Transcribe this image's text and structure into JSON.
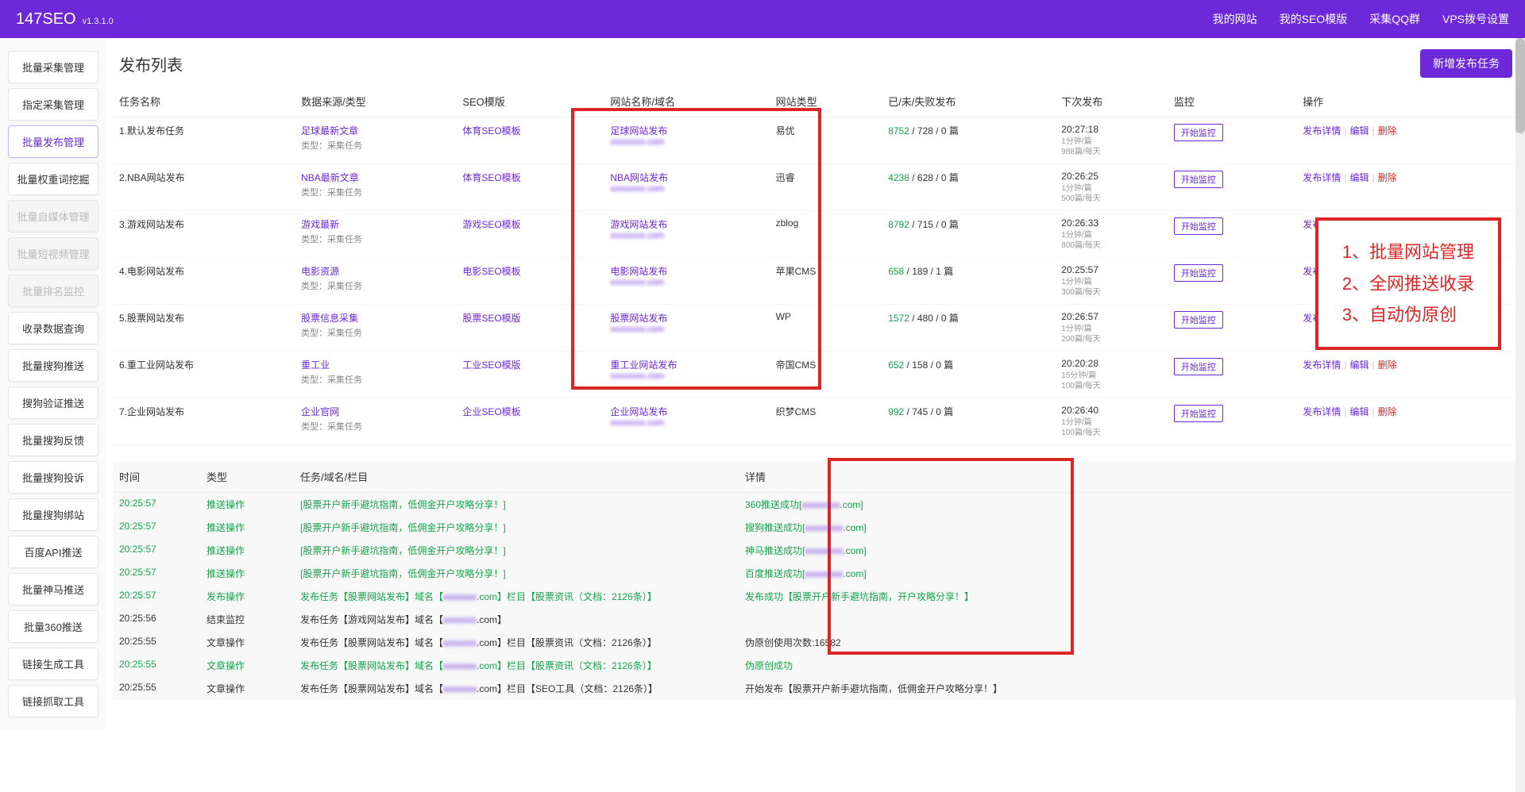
{
  "brand": {
    "title": "147SEO",
    "version": "v1.3.1.0"
  },
  "topnav": [
    "我的网站",
    "我的SEO模版",
    "采集QQ群",
    "VPS拨号设置"
  ],
  "sidebar": [
    {
      "label": "批量采集管理",
      "state": ""
    },
    {
      "label": "指定采集管理",
      "state": ""
    },
    {
      "label": "批量发布管理",
      "state": "active"
    },
    {
      "label": "批量权重词挖掘",
      "state": ""
    },
    {
      "label": "批量自媒体管理",
      "state": "disabled"
    },
    {
      "label": "批量短视频管理",
      "state": "disabled"
    },
    {
      "label": "批量排名监控",
      "state": "disabled"
    },
    {
      "label": "收录数据查询",
      "state": ""
    },
    {
      "label": "批量搜狗推送",
      "state": ""
    },
    {
      "label": "搜狗验证推送",
      "state": ""
    },
    {
      "label": "批量搜狗反馈",
      "state": ""
    },
    {
      "label": "批量搜狗投诉",
      "state": ""
    },
    {
      "label": "批量搜狗绑站",
      "state": ""
    },
    {
      "label": "百度API推送",
      "state": ""
    },
    {
      "label": "批量神马推送",
      "state": ""
    },
    {
      "label": "批量360推送",
      "state": ""
    },
    {
      "label": "链接生成工具",
      "state": ""
    },
    {
      "label": "链接抓取工具",
      "state": ""
    }
  ],
  "page": {
    "title": "发布列表",
    "new_btn": "新增发布任务"
  },
  "columns": [
    "任务名称",
    "数据来源/类型",
    "SEO模版",
    "网站名称/域名",
    "网站类型",
    "已/未/失败发布",
    "下次发布",
    "监控",
    "操作"
  ],
  "sub_type_label": "类型：采集任务",
  "monitor_btn": "开始监控",
  "ops": {
    "detail": "发布详情",
    "edit": "编辑",
    "del": "删除"
  },
  "rows": [
    {
      "idx": "1.默认发布任务",
      "source": "足球最新文章",
      "tpl": "体育SEO模板",
      "site": "足球网站发布",
      "domain": "xxxxxxxx.com",
      "type": "易优",
      "pub_ok": "8752",
      "pub_rest": " / 728 / 0 篇",
      "next": "20:27:18",
      "next_sub": "1分钟/篇\n988篇/每天"
    },
    {
      "idx": "2.NBA网站发布",
      "source": "NBA最新文章",
      "tpl": "体育SEO模板",
      "site": "NBA网站发布",
      "domain": "xxxxxxxx.com",
      "type": "迅睿",
      "pub_ok": "4238",
      "pub_rest": " / 628 / 0 篇",
      "next": "20:26:25",
      "next_sub": "1分钟/篇\n500篇/每天"
    },
    {
      "idx": "3.游戏网站发布",
      "source": "游戏最新",
      "tpl": "游戏SEO模板",
      "site": "游戏网站发布",
      "domain": "xxxxxxxx.com",
      "type": "zblog",
      "pub_ok": "8792",
      "pub_rest": " / 715 / 0 篇",
      "next": "20:26:33",
      "next_sub": "1分钟/篇\n800篇/每天"
    },
    {
      "idx": "4.电影网站发布",
      "source": "电影资源",
      "tpl": "电影SEO模板",
      "site": "电影网站发布",
      "domain": "xxxxxxxx.com",
      "type": "苹果CMS",
      "pub_ok": "658",
      "pub_rest": " / 189 / 1 篇",
      "next": "20:25:57",
      "next_sub": "1分钟/篇\n300篇/每天"
    },
    {
      "idx": "5.股票网站发布",
      "source": "股票信息采集",
      "tpl": "股票SEO模版",
      "site": "股票网站发布",
      "domain": "xxxxxxxx.com",
      "type": "WP",
      "pub_ok": "1572",
      "pub_rest": " / 480 / 0 篇",
      "next": "20:26:57",
      "next_sub": "1分钟/篇\n200篇/每天"
    },
    {
      "idx": "6.重工业网站发布",
      "source": "重工业",
      "tpl": "工业SEO模版",
      "site": "重工业网站发布",
      "domain": "xxxxxxxx.com",
      "type": "帝国CMS",
      "pub_ok": "652",
      "pub_rest": " / 158 / 0 篇",
      "next": "20:20:28",
      "next_sub": "15分钟/篇\n100篇/每天"
    },
    {
      "idx": "7.企业网站发布",
      "source": "企业官网",
      "tpl": "企业SEO模板",
      "site": "企业网站发布",
      "domain": "xxxxxxxx.com",
      "type": "织梦CMS",
      "pub_ok": "992",
      "pub_rest": " / 745 / 0 篇",
      "next": "20:26:40",
      "next_sub": "1分钟/篇\n100篇/每天"
    }
  ],
  "overlay": [
    "1、批量网站管理",
    "2、全网推送收录",
    "3、自动伪原创"
  ],
  "log_columns": {
    "time": "时间",
    "type": "类型",
    "task": "任务/域名/栏目",
    "detail": "详情"
  },
  "logs": [
    {
      "time": "20:25:57",
      "type": "推送操作",
      "task": "[股票开户新手避坑指南，低佣金开户攻略分享！]",
      "detail_pre": "360推送成功[",
      "detail_blur": "xxxxxxxx",
      "detail_post": ".com]",
      "g": true
    },
    {
      "time": "20:25:57",
      "type": "推送操作",
      "task": "[股票开户新手避坑指南，低佣金开户攻略分享！]",
      "detail_pre": "搜狗推送成功[",
      "detail_blur": "xxxxxxxx",
      "detail_post": ".com]",
      "g": true
    },
    {
      "time": "20:25:57",
      "type": "推送操作",
      "task": "[股票开户新手避坑指南，低佣金开户攻略分享！]",
      "detail_pre": "神马推送成功[",
      "detail_blur": "xxxxxxxx",
      "detail_post": ".com]",
      "g": true
    },
    {
      "time": "20:25:57",
      "type": "推送操作",
      "task": "[股票开户新手避坑指南，低佣金开户攻略分享！]",
      "detail_pre": "百度推送成功[",
      "detail_blur": "xxxxxxxx",
      "detail_post": ".com]",
      "g": true
    },
    {
      "time": "20:25:57",
      "type": "发布操作",
      "task_pre": "发布任务【股票网站发布】域名【",
      "task_blur": "xxxxxxx",
      "task_post": ".com】栏目【股票资讯（文档：2126条）】",
      "detail_pre": "发布成功【股票开户新手避坑指南，开户攻略分享！】",
      "detail_blur": "",
      "detail_post": "",
      "g": true
    },
    {
      "time": "20:25:56",
      "type": "结束监控",
      "task_pre": "发布任务【游戏网站发布】域名【",
      "task_blur": "xxxxxxx",
      "task_post": ".com】",
      "detail_pre": "",
      "detail_blur": "",
      "detail_post": "",
      "g": false
    },
    {
      "time": "20:25:55",
      "type": "文章操作",
      "task_pre": "发布任务【股票网站发布】域名【",
      "task_blur": "xxxxxxx",
      "task_post": ".com】栏目【股票资讯（文档：2126条）】",
      "detail_pre": "伪原创使用次数:16582",
      "detail_blur": "",
      "detail_post": "",
      "g": false
    },
    {
      "time": "20:25:55",
      "type": "文章操作",
      "task_pre": "发布任务【股票网站发布】域名【",
      "task_blur": "xxxxxxx",
      "task_post": ".com】栏目【股票资讯（文档：2126条）】",
      "detail_pre": "伪原创成功",
      "detail_blur": "",
      "detail_post": "",
      "g": true,
      "dg": true
    },
    {
      "time": "20:25:55",
      "type": "文章操作",
      "task_pre": "发布任务【股票网站发布】域名【",
      "task_blur": "xxxxxxx",
      "task_post": ".com】栏目【SEO工具（文档：2126条）】",
      "detail_pre": "开始发布【股票开户新手避坑指南，低佣金开户攻略分享！】",
      "detail_blur": "",
      "detail_post": "",
      "g": false
    }
  ]
}
